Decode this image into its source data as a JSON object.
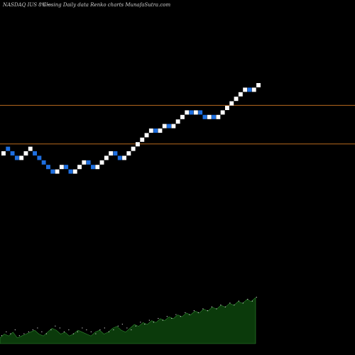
{
  "header": {
    "symbol": "NASDAQ IUS 8%~",
    "description": "Closing Daily data Renko charts MunafaSutra.com"
  },
  "colors": {
    "background": "#000000",
    "up_brick": "#ffffff",
    "down_brick": "#1e6fe0",
    "reference_line": "#b86a1e",
    "volume_area": "#0b3a0b",
    "volume_edge": "#2f8a2f"
  },
  "chart_data": {
    "type": "renko",
    "bricks": [
      {
        "dir": "up",
        "level": 40
      },
      {
        "dir": "down",
        "level": 41
      },
      {
        "dir": "down",
        "level": 40
      },
      {
        "dir": "down",
        "level": 39
      },
      {
        "dir": "up",
        "level": 39
      },
      {
        "dir": "up",
        "level": 40
      },
      {
        "dir": "up",
        "level": 41
      },
      {
        "dir": "down",
        "level": 40
      },
      {
        "dir": "down",
        "level": 39
      },
      {
        "dir": "down",
        "level": 38
      },
      {
        "dir": "down",
        "level": 37
      },
      {
        "dir": "down",
        "level": 36
      },
      {
        "dir": "up",
        "level": 36
      },
      {
        "dir": "up",
        "level": 37
      },
      {
        "dir": "down",
        "level": 37
      },
      {
        "dir": "down",
        "level": 36
      },
      {
        "dir": "up",
        "level": 36
      },
      {
        "dir": "up",
        "level": 37
      },
      {
        "dir": "up",
        "level": 38
      },
      {
        "dir": "down",
        "level": 38
      },
      {
        "dir": "down",
        "level": 37
      },
      {
        "dir": "up",
        "level": 37
      },
      {
        "dir": "up",
        "level": 38
      },
      {
        "dir": "up",
        "level": 39
      },
      {
        "dir": "up",
        "level": 40
      },
      {
        "dir": "down",
        "level": 40
      },
      {
        "dir": "down",
        "level": 39
      },
      {
        "dir": "up",
        "level": 39
      },
      {
        "dir": "up",
        "level": 40
      },
      {
        "dir": "up",
        "level": 41
      },
      {
        "dir": "up",
        "level": 42
      },
      {
        "dir": "up",
        "level": 43
      },
      {
        "dir": "up",
        "level": 44
      },
      {
        "dir": "up",
        "level": 45
      },
      {
        "dir": "down",
        "level": 45
      },
      {
        "dir": "up",
        "level": 45
      },
      {
        "dir": "up",
        "level": 46
      },
      {
        "dir": "down",
        "level": 46
      },
      {
        "dir": "up",
        "level": 46
      },
      {
        "dir": "up",
        "level": 47
      },
      {
        "dir": "up",
        "level": 48
      },
      {
        "dir": "up",
        "level": 49
      },
      {
        "dir": "down",
        "level": 49
      },
      {
        "dir": "up",
        "level": 49
      },
      {
        "dir": "down",
        "level": 49
      },
      {
        "dir": "down",
        "level": 48
      },
      {
        "dir": "up",
        "level": 48
      },
      {
        "dir": "down",
        "level": 48
      },
      {
        "dir": "up",
        "level": 48
      },
      {
        "dir": "up",
        "level": 49
      },
      {
        "dir": "up",
        "level": 50
      },
      {
        "dir": "up",
        "level": 51
      },
      {
        "dir": "up",
        "level": 52
      },
      {
        "dir": "up",
        "level": 53
      },
      {
        "dir": "up",
        "level": 54
      },
      {
        "dir": "down",
        "level": 54
      },
      {
        "dir": "up",
        "level": 54
      },
      {
        "dir": "up",
        "level": 55
      }
    ],
    "reference_lines": [
      {
        "level": 50.6
      },
      {
        "level": 42.1
      }
    ],
    "volume_profile": [
      3,
      5,
      4,
      6,
      3,
      4,
      5,
      6,
      7,
      5,
      4,
      6,
      8,
      7,
      5,
      6,
      4,
      5,
      7,
      6,
      5,
      4,
      6,
      7,
      5,
      6,
      8,
      9,
      7,
      6,
      8,
      10,
      9,
      11,
      10,
      12,
      11,
      13,
      12,
      14,
      13,
      15,
      14,
      16,
      15,
      17,
      16,
      18,
      17,
      19,
      18,
      20,
      19,
      21,
      20,
      22,
      21,
      23,
      22,
      24
    ]
  }
}
